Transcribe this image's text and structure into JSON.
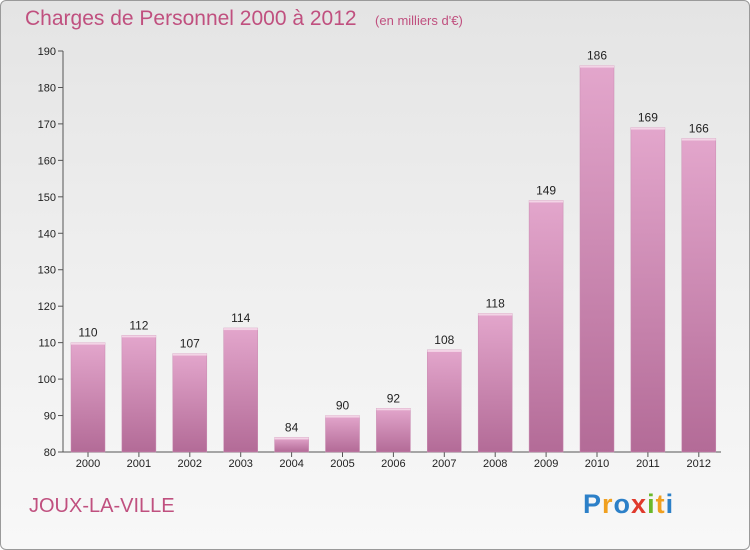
{
  "chart_data": {
    "type": "bar",
    "title": "Charges de Personnel 2000 à 2012",
    "unit": "(en milliers d'€)",
    "categories": [
      "2000",
      "2001",
      "2002",
      "2003",
      "2004",
      "2005",
      "2006",
      "2007",
      "2008",
      "2009",
      "2010",
      "2011",
      "2012"
    ],
    "values": [
      110,
      112,
      107,
      114,
      84,
      90,
      92,
      108,
      118,
      149,
      186,
      169,
      166
    ],
    "ylim": [
      80,
      190
    ],
    "yticks": [
      80,
      90,
      100,
      110,
      120,
      130,
      140,
      150,
      160,
      170,
      180,
      190
    ],
    "grid": false,
    "colors": {
      "bar": "#d98fba",
      "bar_dark": "#b66a96",
      "text": "#c0507f"
    }
  },
  "place": "JOUX-LA-VILLE",
  "logo": {
    "letters": [
      "P",
      "r",
      "o",
      "x",
      "i",
      "t",
      "i"
    ],
    "colors": [
      "#2c80c8",
      "#f0a020",
      "#2c80c8",
      "#e03a2c",
      "#6ab82a",
      "#f0a020",
      "#2c80c8"
    ]
  }
}
